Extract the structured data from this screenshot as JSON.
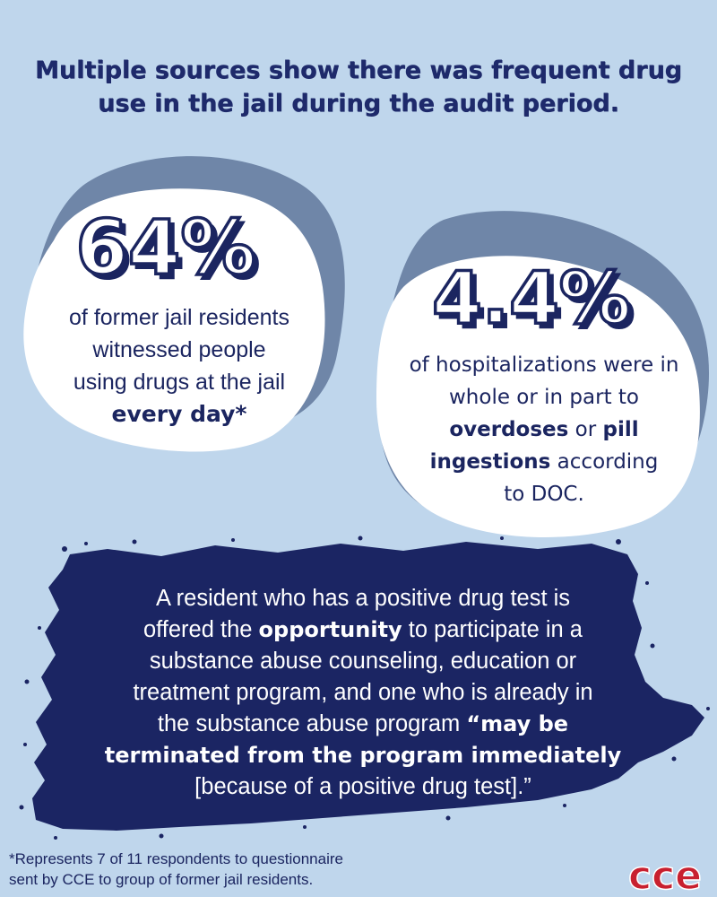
{
  "headline": "Multiple sources show there was frequent drug use in the jail during the audit period.",
  "stat1": {
    "value": "64%",
    "line1": "of former jail residents",
    "line2": "witnessed people",
    "line3": "using drugs at the jail",
    "emphasis": "every day*"
  },
  "stat2": {
    "value": "4.4%",
    "line1": "of hospitalizations were in",
    "line2": "whole or in part to",
    "emphasis1": "overdoses",
    "joiner": " or ",
    "emphasis2": "pill",
    "emphasis3": "ingestions",
    "line4_rest": " according",
    "line5": "to DOC."
  },
  "quote": {
    "p1": "A resident who has a positive drug test is",
    "p2": "offered the ",
    "p2_bold": "opportunity",
    "p2_rest": " to participate in a",
    "p3": "substance abuse counseling, education or",
    "p4": "treatment program, and one who is already in",
    "p5": "the substance abuse program ",
    "p5_bold": "“may be",
    "p6_bold": "terminated from the program immediately",
    "p7": "[because of a positive drug test].”"
  },
  "footnote": {
    "line1": "*Represents 7 of 11 respondents to questionnaire",
    "line2": "sent by CCE to group of former jail residents."
  },
  "logo_text": "cce",
  "colors": {
    "background": "#bfd6ec",
    "navy": "#1b2560",
    "blob_shadow": "#6f86a8",
    "logo_red": "#c8202f"
  }
}
